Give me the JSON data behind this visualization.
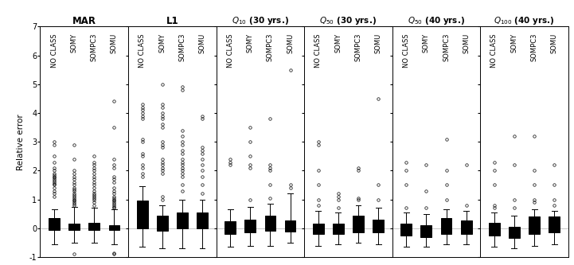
{
  "panels": [
    {
      "title": "MAR",
      "title_sub": null,
      "title_extra": null,
      "groups": [
        "NO CLASS",
        "SOMY",
        "SOMPC3",
        "SOMU"
      ],
      "boxes": [
        {
          "q1": -0.05,
          "median": 0.05,
          "q3": 0.35,
          "whislo": -0.55,
          "whishi": 0.65,
          "fliers_above": [
            1.1,
            1.2,
            1.3,
            1.4,
            1.5,
            1.55,
            1.6,
            1.65,
            1.7,
            1.75,
            1.8,
            1.85,
            1.9,
            2.0,
            2.1,
            2.3,
            2.5,
            2.9,
            3.0
          ],
          "fliers_below": []
        },
        {
          "q1": -0.07,
          "median": 0.02,
          "q3": 0.15,
          "whislo": -0.5,
          "whishi": 0.75,
          "fliers_above": [
            0.8,
            0.85,
            0.9,
            0.95,
            1.0,
            1.05,
            1.1,
            1.15,
            1.2,
            1.3,
            1.35,
            1.4,
            1.5,
            1.6,
            1.7,
            1.8,
            1.9,
            2.0,
            2.4,
            2.9
          ],
          "fliers_below": [
            -0.9
          ]
        },
        {
          "q1": -0.05,
          "median": 0.05,
          "q3": 0.2,
          "whislo": -0.5,
          "whishi": 0.7,
          "fliers_above": [
            0.8,
            0.9,
            1.0,
            1.05,
            1.1,
            1.15,
            1.2,
            1.3,
            1.4,
            1.5,
            1.6,
            1.7,
            1.8,
            1.9,
            2.0,
            2.1,
            2.2,
            2.3,
            2.5
          ],
          "fliers_below": []
        },
        {
          "q1": -0.05,
          "median": 0.0,
          "q3": 0.1,
          "whislo": -0.55,
          "whishi": 0.65,
          "fliers_above": [
            0.7,
            0.75,
            0.8,
            0.85,
            0.9,
            0.95,
            1.0,
            1.05,
            1.1,
            1.2,
            1.3,
            1.4,
            1.6,
            1.7,
            1.8,
            2.1,
            2.2,
            2.4,
            3.5,
            4.4
          ],
          "fliers_below": [
            -0.85,
            -0.9
          ]
        }
      ]
    },
    {
      "title": "L1",
      "title_sub": null,
      "title_extra": null,
      "groups": [
        "NO CLASS",
        "SOMY",
        "SOMPC3",
        "SOMU"
      ],
      "boxes": [
        {
          "q1": 0.0,
          "median": 0.15,
          "q3": 0.95,
          "whislo": -0.65,
          "whishi": 1.45,
          "fliers_above": [
            1.8,
            1.9,
            2.1,
            2.2,
            2.5,
            2.6,
            3.0,
            3.1,
            3.8,
            3.9,
            4.0,
            4.1,
            4.2,
            4.3
          ],
          "fliers_below": []
        },
        {
          "q1": -0.08,
          "median": 0.02,
          "q3": 0.45,
          "whislo": -0.7,
          "whishi": 0.8,
          "fliers_above": [
            1.0,
            1.1,
            1.9,
            2.0,
            2.1,
            2.2,
            2.3,
            2.4,
            2.8,
            2.9,
            3.0,
            3.5,
            3.6,
            3.8,
            3.9,
            4.0,
            4.2,
            4.3,
            5.0
          ],
          "fliers_below": []
        },
        {
          "q1": 0.0,
          "median": 0.1,
          "q3": 0.55,
          "whislo": -0.7,
          "whishi": 1.0,
          "fliers_above": [
            1.3,
            1.5,
            1.8,
            1.9,
            2.0,
            2.1,
            2.2,
            2.3,
            2.4,
            2.6,
            2.7,
            2.9,
            3.0,
            3.2,
            3.4,
            4.8,
            4.9
          ],
          "fliers_below": []
        },
        {
          "q1": 0.0,
          "median": 0.1,
          "q3": 0.55,
          "whislo": -0.7,
          "whishi": 1.0,
          "fliers_above": [
            1.2,
            1.5,
            1.8,
            2.0,
            2.2,
            2.4,
            2.6,
            2.7,
            2.8,
            3.8,
            3.9
          ],
          "fliers_below": []
        }
      ]
    },
    {
      "title": "Q",
      "title_sub": "10",
      "title_extra": " (30 yrs.)",
      "groups": [
        "NO CLASS",
        "SOMY",
        "SOMPC3",
        "SOMU"
      ],
      "boxes": [
        {
          "q1": -0.2,
          "median": -0.05,
          "q3": 0.25,
          "whislo": -0.65,
          "whishi": 0.65,
          "fliers_above": [
            2.2,
            2.3,
            2.4
          ],
          "fliers_below": []
        },
        {
          "q1": -0.15,
          "median": -0.02,
          "q3": 0.3,
          "whislo": -0.6,
          "whishi": 0.75,
          "fliers_above": [
            1.0,
            2.1,
            2.2,
            2.5,
            3.0,
            3.5
          ],
          "fliers_below": []
        },
        {
          "q1": -0.1,
          "median": 0.05,
          "q3": 0.45,
          "whislo": -0.6,
          "whishi": 0.85,
          "fliers_above": [
            1.05,
            1.5,
            2.0,
            2.1,
            2.2,
            3.8
          ],
          "fliers_below": []
        },
        {
          "q1": -0.12,
          "median": -0.03,
          "q3": 0.28,
          "whislo": -0.5,
          "whishi": 1.2,
          "fliers_above": [
            1.4,
            1.5,
            5.5
          ],
          "fliers_below": []
        }
      ]
    },
    {
      "title": "Q",
      "title_sub": "50",
      "title_extra": " (30 yrs.)",
      "groups": [
        "NO CLASS",
        "SOMY",
        "SOMPC3",
        "SOMU"
      ],
      "boxes": [
        {
          "q1": -0.2,
          "median": -0.1,
          "q3": 0.15,
          "whislo": -0.6,
          "whishi": 0.6,
          "fliers_above": [
            0.8,
            1.0,
            1.5,
            2.0,
            2.9,
            3.0
          ],
          "fliers_below": []
        },
        {
          "q1": -0.2,
          "median": -0.1,
          "q3": 0.15,
          "whislo": -0.55,
          "whishi": 0.55,
          "fliers_above": [
            0.7,
            1.0,
            1.1,
            1.2
          ],
          "fliers_below": []
        },
        {
          "q1": -0.15,
          "median": 0.0,
          "q3": 0.45,
          "whislo": -0.5,
          "whishi": 0.8,
          "fliers_above": [
            1.0,
            1.05,
            2.0,
            2.1
          ],
          "fliers_below": []
        },
        {
          "q1": -0.15,
          "median": -0.05,
          "q3": 0.3,
          "whislo": -0.55,
          "whishi": 0.7,
          "fliers_above": [
            1.0,
            1.5,
            4.5
          ],
          "fliers_below": []
        }
      ]
    },
    {
      "title": "Q",
      "title_sub": "50",
      "title_extra": " (40 yrs.)",
      "groups": [
        "NO CLASS",
        "SOMY",
        "SOMPC3",
        "SOMU"
      ],
      "boxes": [
        {
          "q1": -0.25,
          "median": -0.12,
          "q3": 0.15,
          "whislo": -0.65,
          "whishi": 0.55,
          "fliers_above": [
            0.7,
            1.5,
            2.0,
            2.3
          ],
          "fliers_below": []
        },
        {
          "q1": -0.3,
          "median": -0.15,
          "q3": 0.1,
          "whislo": -0.65,
          "whishi": 0.5,
          "fliers_above": [
            0.7,
            1.3,
            2.2
          ],
          "fliers_below": []
        },
        {
          "q1": -0.2,
          "median": -0.08,
          "q3": 0.35,
          "whislo": -0.55,
          "whishi": 0.65,
          "fliers_above": [
            1.0,
            1.5,
            2.0,
            3.1
          ],
          "fliers_below": []
        },
        {
          "q1": -0.2,
          "median": -0.08,
          "q3": 0.28,
          "whislo": -0.55,
          "whishi": 0.6,
          "fliers_above": [
            0.8,
            2.2
          ],
          "fliers_below": []
        }
      ]
    },
    {
      "title": "Q",
      "title_sub": "100",
      "title_extra": " (40 yrs.)",
      "groups": [
        "NO CLASS",
        "SOMY",
        "SOMPC3",
        "SOMU"
      ],
      "boxes": [
        {
          "q1": -0.25,
          "median": -0.12,
          "q3": 0.2,
          "whislo": -0.65,
          "whishi": 0.55,
          "fliers_above": [
            0.7,
            0.8,
            1.5,
            2.0,
            2.3
          ],
          "fliers_below": []
        },
        {
          "q1": -0.35,
          "median": -0.2,
          "q3": 0.05,
          "whislo": -0.7,
          "whishi": 0.45,
          "fliers_above": [
            0.7,
            1.0,
            2.2,
            3.2
          ],
          "fliers_below": []
        },
        {
          "q1": -0.2,
          "median": -0.08,
          "q3": 0.4,
          "whislo": -0.6,
          "whishi": 0.65,
          "fliers_above": [
            0.9,
            1.0,
            1.5,
            2.0,
            3.2
          ],
          "fliers_below": []
        },
        {
          "q1": -0.15,
          "median": -0.05,
          "q3": 0.42,
          "whislo": -0.55,
          "whishi": 0.6,
          "fliers_above": [
            0.8,
            1.0,
            1.5,
            2.2
          ],
          "fliers_below": []
        }
      ]
    }
  ],
  "ylabel": "Relative error",
  "ylim": [
    -1.0,
    7.0
  ],
  "yticks": [
    -1,
    0,
    1,
    2,
    3,
    4,
    5,
    6,
    7
  ],
  "box_width": 0.55,
  "box_color": "white",
  "median_color": "black",
  "whisker_color": "black",
  "flier_color": "none",
  "flier_edgecolor": "black",
  "flier_size": 2.5,
  "bg_color": "white",
  "grid_color": "#bbbbbb"
}
